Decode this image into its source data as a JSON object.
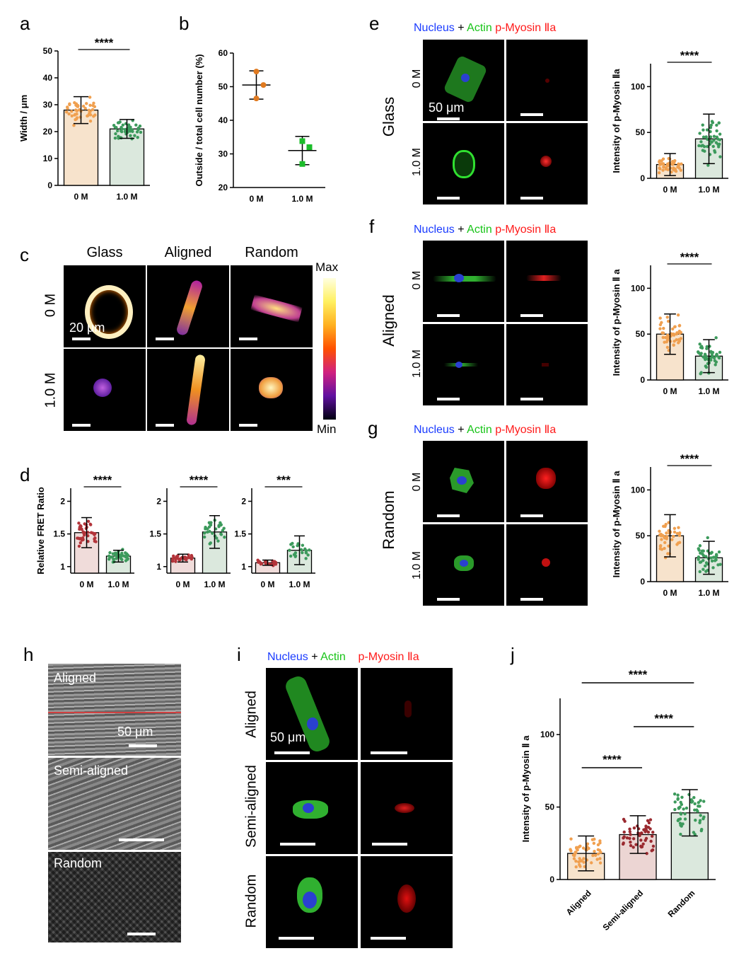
{
  "panels": {
    "a": {
      "letter": "a",
      "ylabel": "Width / μm",
      "categories": [
        "0 M",
        "1.0 M"
      ],
      "sig": "****"
    },
    "b": {
      "letter": "b",
      "ylabel": "Outside / total cell number (%)",
      "categories": [
        "0 M",
        "1.0 M"
      ]
    },
    "c": {
      "letter": "c",
      "columns": [
        "Glass",
        "Aligned",
        "Random"
      ],
      "rows": [
        "0 M",
        "1.0 M"
      ],
      "scale": "20 μm",
      "max": "Max",
      "min": "Min"
    },
    "d": {
      "letter": "d",
      "ylabel": "Relative FRET Ratio",
      "categories": [
        "0 M",
        "1.0 M"
      ],
      "sigs": [
        "****",
        "****",
        "***"
      ]
    },
    "e": {
      "letter": "e",
      "row_group": "Glass",
      "rows": [
        "0 M",
        "1.0 M"
      ],
      "scale": "50 μm",
      "ylabel": "Intensity of p-Myosin Ⅱa",
      "sig": "****",
      "categories": [
        "0 M",
        "1.0 M"
      ]
    },
    "f": {
      "letter": "f",
      "row_group": "Aligned",
      "rows": [
        "0 M",
        "1.0 M"
      ],
      "ylabel": "Intensity of p-Myosin Ⅱ a",
      "sig": "****",
      "categories": [
        "0 M",
        "1.0 M"
      ]
    },
    "g": {
      "letter": "g",
      "row_group": "Random",
      "rows": [
        "0 M",
        "1.0 M"
      ],
      "ylabel": "Intensity of p-Myosin Ⅱ a",
      "sig": "****",
      "categories": [
        "0 M",
        "1.0 M"
      ]
    },
    "h": {
      "letter": "h",
      "labels": [
        "Aligned",
        "Semi-aligned",
        "Random"
      ],
      "scale": "50 μm"
    },
    "i": {
      "letter": "i",
      "rows": [
        "Aligned",
        "Semi-aligned",
        "Random"
      ],
      "scale": "50 μm"
    },
    "j": {
      "letter": "j",
      "ylabel": "Intensity of p-Myosin Ⅱ a",
      "categories": [
        "Aligned",
        "Semi-aligned",
        "Random"
      ],
      "sigs": [
        "****",
        "****",
        "****"
      ]
    }
  },
  "legend": {
    "nucleus": "Nucleus",
    "plus": "+",
    "actin": "Actin",
    "pmyosin": "p-Myosin Ⅱa"
  },
  "chart_data": [
    {
      "type": "bar",
      "panel": "a",
      "categories": [
        "0 M",
        "1.0 M"
      ],
      "values": [
        28,
        21
      ],
      "errors": [
        5,
        3.5
      ],
      "ylim": [
        0,
        50
      ],
      "yticks": [
        0,
        10,
        20,
        30,
        40,
        50
      ],
      "colors": [
        "#f7e3cc",
        "#dbe8dd"
      ],
      "dot_colors": [
        "#f0a050",
        "#3c9a5c"
      ],
      "n": 45
    },
    {
      "type": "scatter",
      "panel": "b",
      "categories": [
        "0 M",
        "1.0 M"
      ],
      "means": [
        50.5,
        31
      ],
      "errors": [
        4.2,
        4.2
      ],
      "points": [
        [
          54.5,
          50.5,
          46.5
        ],
        [
          33.8,
          32,
          27
        ]
      ],
      "ylim": [
        20,
        60
      ],
      "yticks": [
        20,
        30,
        40,
        50,
        60
      ],
      "dot_colors": [
        "#e07a20",
        "#1bbd2a"
      ]
    },
    {
      "type": "bar",
      "panel": "d1",
      "categories": [
        "0 M",
        "1.0 M"
      ],
      "values": [
        1.52,
        1.16
      ],
      "errors": [
        0.23,
        0.09
      ],
      "ylim": [
        0.9,
        2.2
      ],
      "yticks": [
        1.0,
        1.5,
        2.0
      ],
      "colors": [
        "#f0dcda",
        "#dbe8dd"
      ],
      "dot_colors": [
        "#b3343a",
        "#3c9a5c"
      ],
      "n": 40
    },
    {
      "type": "bar",
      "panel": "d2",
      "categories": [
        "0 M",
        "1.0 M"
      ],
      "values": [
        1.13,
        1.53
      ],
      "errors": [
        0.06,
        0.25
      ],
      "ylim": [
        0.9,
        2.2
      ],
      "yticks": [
        1.0,
        1.5,
        2.0
      ],
      "colors": [
        "#f0dcda",
        "#dbe8dd"
      ],
      "dot_colors": [
        "#b3343a",
        "#3c9a5c"
      ],
      "n": 30
    },
    {
      "type": "bar",
      "panel": "d3",
      "categories": [
        "0 M",
        "1.0 M"
      ],
      "values": [
        1.06,
        1.25
      ],
      "errors": [
        0.04,
        0.22
      ],
      "ylim": [
        0.9,
        2.2
      ],
      "yticks": [
        1.0,
        1.5,
        2.0
      ],
      "colors": [
        "#f0dcda",
        "#dbe8dd"
      ],
      "dot_colors": [
        "#b3343a",
        "#3c9a5c"
      ],
      "n": 22
    },
    {
      "type": "bar",
      "panel": "e",
      "categories": [
        "0 M",
        "1.0 M"
      ],
      "values": [
        15,
        43
      ],
      "errors": [
        12,
        27
      ],
      "ylim": [
        0,
        125
      ],
      "yticks": [
        0,
        50,
        100
      ],
      "colors": [
        "#f7e3cc",
        "#dbe8dd"
      ],
      "dot_colors": [
        "#f0a050",
        "#3c9a5c"
      ],
      "n": 45
    },
    {
      "type": "bar",
      "panel": "f",
      "categories": [
        "0 M",
        "1.0 M"
      ],
      "values": [
        50,
        26
      ],
      "errors": [
        22,
        18
      ],
      "ylim": [
        0,
        125
      ],
      "yticks": [
        0,
        50,
        100
      ],
      "colors": [
        "#f7e3cc",
        "#dbe8dd"
      ],
      "dot_colors": [
        "#f0a050",
        "#3c9a5c"
      ],
      "n": 45
    },
    {
      "type": "bar",
      "panel": "g",
      "categories": [
        "0 M",
        "1.0 M"
      ],
      "values": [
        50,
        26
      ],
      "errors": [
        23,
        18
      ],
      "ylim": [
        0,
        125
      ],
      "yticks": [
        0,
        50,
        100
      ],
      "colors": [
        "#f7e3cc",
        "#dbe8dd"
      ],
      "dot_colors": [
        "#f0a050",
        "#3c9a5c"
      ],
      "n": 40
    },
    {
      "type": "bar",
      "panel": "j",
      "categories": [
        "Aligned",
        "Semi-aligned",
        "Random"
      ],
      "values": [
        18,
        31,
        46
      ],
      "errors": [
        12,
        13,
        16
      ],
      "ylim": [
        0,
        125
      ],
      "yticks": [
        0,
        50,
        100
      ],
      "colors": [
        "#f7e3cc",
        "#ecd5d3",
        "#dbe8dd"
      ],
      "dot_colors": [
        "#f0a050",
        "#9a2a30",
        "#3c9a5c"
      ],
      "n": 50
    }
  ]
}
